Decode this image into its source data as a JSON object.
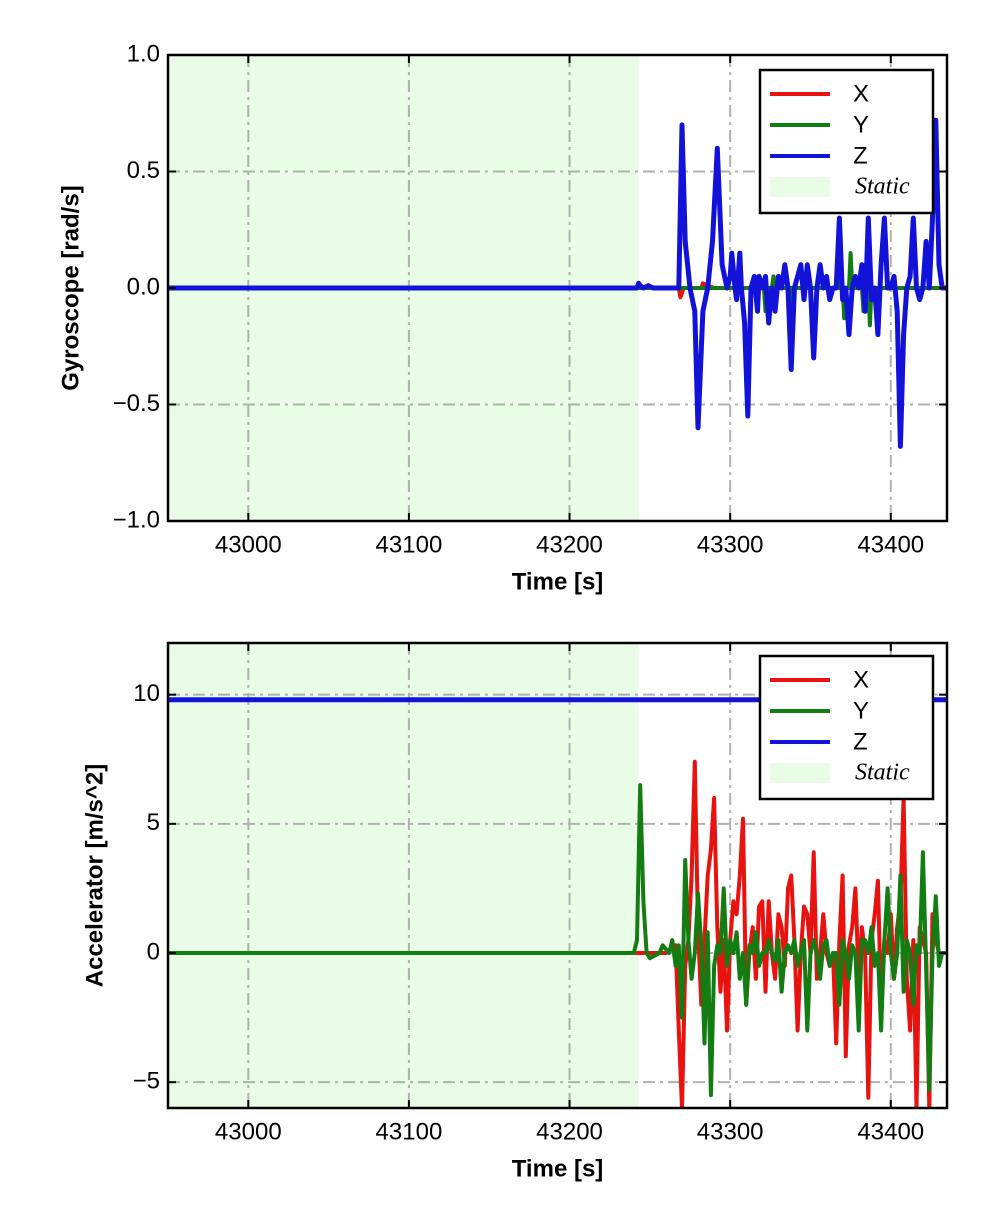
{
  "colors": {
    "X": "#e8120f",
    "Y": "#137d13",
    "Z": "#1212d8",
    "static_fill": "#e8fce6",
    "grid": "#b0b0b0"
  },
  "chart_data": [
    {
      "type": "line",
      "ylabel": "Gyroscope [rad/s]",
      "xlabel": "Time [s]",
      "xlim": [
        42950,
        43435
      ],
      "ylim": [
        -1.0,
        1.0
      ],
      "xticks": [
        43000,
        43100,
        43200,
        43300,
        43400
      ],
      "xtick_labels": [
        "43000",
        "43100",
        "43200",
        "43300",
        "43400"
      ],
      "yticks": [
        1.0,
        0.5,
        0.0,
        -0.5,
        -1.0
      ],
      "ytick_labels": [
        "1.0",
        "0.5",
        "0.0",
        "−0.5",
        "−1.0"
      ],
      "grid": true,
      "legend_position": "top-right",
      "static_region": [
        42950,
        43243
      ],
      "legend": [
        "X",
        "Y",
        "Z",
        "Static"
      ],
      "series": [
        {
          "name": "X",
          "x": [
            42950,
            43243,
            43260,
            43268,
            43269,
            43271,
            43282,
            43283,
            43290,
            43300,
            43325,
            43326,
            43328,
            43340,
            43360,
            43376,
            43377,
            43378,
            43390,
            43435
          ],
          "y": [
            0,
            0,
            0,
            0,
            -0.04,
            0,
            0,
            0.02,
            0,
            0,
            0,
            -0.04,
            0,
            0,
            0,
            0,
            0.02,
            0,
            0,
            0
          ]
        },
        {
          "name": "Y",
          "x": [
            42950,
            43243,
            43260,
            43300,
            43321,
            43322,
            43323,
            43326,
            43327,
            43328,
            43336,
            43337,
            43338,
            43366,
            43367,
            43368,
            43370,
            43371,
            43372,
            43374,
            43375,
            43376,
            43382,
            43383,
            43384,
            43386,
            43387,
            43388,
            43420,
            43435
          ],
          "y": [
            0,
            0,
            0,
            0,
            0,
            -0.1,
            0,
            0,
            0.05,
            0,
            0,
            -0.08,
            0,
            0,
            0.05,
            0,
            0,
            -0.13,
            0,
            0,
            0.15,
            0,
            0,
            -0.1,
            0,
            0,
            -0.16,
            0,
            0,
            0
          ]
        },
        {
          "name": "Z",
          "x": [
            42950,
            43242,
            43243,
            43244,
            43246,
            43249,
            43252,
            43268,
            43270,
            43272,
            43275,
            43278,
            43280,
            43283,
            43286,
            43289,
            43292,
            43295,
            43298,
            43300,
            43301,
            43303,
            43304,
            43306,
            43307,
            43309,
            43311,
            43313,
            43315,
            43317,
            43318,
            43320,
            43322,
            43324,
            43326,
            43328,
            43330,
            43332,
            43334,
            43336,
            43338,
            43340,
            43342,
            43344,
            43346,
            43348,
            43350,
            43352,
            43354,
            43356,
            43358,
            43360,
            43362,
            43364,
            43366,
            43368,
            43370,
            43372,
            43374,
            43376,
            43378,
            43380,
            43382,
            43384,
            43386,
            43388,
            43390,
            43392,
            43394,
            43396,
            43398,
            43400,
            43402,
            43404,
            43406,
            43408,
            43410,
            43412,
            43414,
            43416,
            43418,
            43420,
            43422,
            43424,
            43426,
            43428,
            43430,
            43432,
            43435
          ],
          "y": [
            0,
            0,
            0.02,
            0.01,
            0,
            0.01,
            0,
            0,
            0.7,
            0.2,
            0,
            -0.1,
            -0.6,
            -0.1,
            0,
            0.2,
            0.6,
            0.1,
            0,
            0.05,
            0.15,
            0,
            -0.05,
            0.15,
            0,
            -0.15,
            -0.55,
            0,
            0.05,
            -0.1,
            0.05,
            0,
            0.05,
            -0.15,
            0,
            -0.1,
            0.05,
            0,
            0.1,
            0,
            -0.35,
            0,
            0.05,
            0.1,
            -0.05,
            0.1,
            0,
            -0.3,
            0,
            0.1,
            0,
            0.05,
            -0.05,
            0,
            0,
            0.3,
            -0.05,
            0,
            -0.2,
            0,
            0.05,
            0,
            0.1,
            -0.1,
            0.3,
            -0.05,
            0,
            -0.2,
            0.1,
            0.3,
            0,
            0,
            0.05,
            -0.1,
            -0.68,
            -0.2,
            0,
            0.05,
            0.3,
            0,
            -0.05,
            0,
            0.2,
            0,
            0.3,
            0.72,
            0.1,
            0,
            0
          ]
        }
      ]
    },
    {
      "type": "line",
      "ylabel": "Accelerator [m/s^2]",
      "xlabel": "Time [s]",
      "xlim": [
        42950,
        43435
      ],
      "ylim": [
        -6,
        12
      ],
      "xticks": [
        43000,
        43100,
        43200,
        43300,
        43400
      ],
      "xtick_labels": [
        "43000",
        "43100",
        "43200",
        "43300",
        "43400"
      ],
      "yticks": [
        10,
        5,
        0,
        -5
      ],
      "ytick_labels": [
        "10",
        "5",
        "0",
        "−5"
      ],
      "grid": true,
      "legend_position": "top-right",
      "static_region": [
        42950,
        43243
      ],
      "legend": [
        "X",
        "Y",
        "Z",
        "Static"
      ],
      "series": [
        {
          "name": "X",
          "x": [
            42950,
            43243,
            43250,
            43260,
            43266,
            43268,
            43270,
            43272,
            43274,
            43276,
            43278,
            43280,
            43282,
            43284,
            43286,
            43288,
            43290,
            43292,
            43294,
            43296,
            43298,
            43300,
            43302,
            43304,
            43306,
            43308,
            43310,
            43312,
            43314,
            43316,
            43318,
            43320,
            43322,
            43324,
            43326,
            43328,
            43330,
            43332,
            43334,
            43336,
            43338,
            43340,
            43342,
            43344,
            43346,
            43348,
            43350,
            43352,
            43354,
            43356,
            43358,
            43360,
            43362,
            43364,
            43366,
            43368,
            43370,
            43372,
            43374,
            43376,
            43378,
            43380,
            43382,
            43384,
            43386,
            43388,
            43390,
            43392,
            43394,
            43396,
            43398,
            43400,
            43402,
            43404,
            43406,
            43408,
            43410,
            43412,
            43414,
            43416,
            43418,
            43420,
            43422,
            43424,
            43426,
            43428,
            43430,
            43432,
            43435
          ],
          "y": [
            0,
            0,
            0,
            0,
            0.3,
            -3,
            -6,
            -0.5,
            0.5,
            3,
            7.4,
            1,
            -2,
            0.5,
            3,
            4,
            6,
            1,
            -1.5,
            0.5,
            -3,
            0.5,
            2,
            1.5,
            3,
            5.2,
            -2,
            0,
            1,
            -1,
            1.8,
            2,
            -1.5,
            2,
            0,
            -1,
            1.5,
            1,
            -0.5,
            2.5,
            3,
            0.5,
            -3,
            0,
            1.8,
            1.5,
            0,
            3.9,
            -1,
            0,
            1.5,
            0,
            -0.5,
            0,
            -3.5,
            0.5,
            3,
            -4,
            0.3,
            1,
            2.5,
            -1,
            1,
            0,
            -5.6,
            0.5,
            1.5,
            2.8,
            -2,
            0.5,
            0,
            1.5,
            -1,
            1,
            2,
            6,
            -1,
            -3,
            0.5,
            -6,
            1,
            0.5,
            0,
            -6,
            1.5,
            0.5,
            0,
            0,
            0
          ]
        },
        {
          "name": "Y",
          "x": [
            42950,
            43240,
            43242,
            43244,
            43246,
            43248,
            43250,
            43256,
            43258,
            43262,
            43264,
            43266,
            43268,
            43270,
            43272,
            43274,
            43276,
            43278,
            43280,
            43282,
            43284,
            43286,
            43288,
            43290,
            43292,
            43294,
            43296,
            43298,
            43300,
            43302,
            43304,
            43306,
            43308,
            43310,
            43312,
            43314,
            43316,
            43318,
            43320,
            43322,
            43324,
            43326,
            43328,
            43330,
            43332,
            43334,
            43336,
            43338,
            43340,
            43342,
            43344,
            43346,
            43348,
            43350,
            43352,
            43354,
            43356,
            43358,
            43360,
            43362,
            43364,
            43366,
            43368,
            43370,
            43372,
            43374,
            43376,
            43378,
            43380,
            43382,
            43384,
            43386,
            43388,
            43390,
            43392,
            43394,
            43396,
            43398,
            43400,
            43402,
            43404,
            43406,
            43408,
            43410,
            43412,
            43414,
            43416,
            43418,
            43420,
            43422,
            43424,
            43426,
            43428,
            43430,
            43432,
            43435
          ],
          "y": [
            0,
            0,
            0.5,
            6.5,
            2,
            0,
            -0.2,
            0,
            0.3,
            0,
            0.5,
            -0.5,
            0.3,
            -2.5,
            3.6,
            0.5,
            -1,
            0,
            2.3,
            0.3,
            -3.5,
            0.8,
            -5.5,
            -0.5,
            0.3,
            0,
            2.5,
            -0.5,
            0.5,
            0,
            0.8,
            -1,
            0,
            -2,
            0.3,
            0,
            0.8,
            -0.5,
            0,
            0,
            0.5,
            0,
            -0.3,
            0.5,
            -1.5,
            0,
            0.3,
            0,
            0.5,
            -0.5,
            0,
            0.5,
            -3,
            0,
            0.5,
            0,
            -1,
            0.3,
            0.5,
            -0.5,
            0,
            0,
            -2,
            0.5,
            0,
            -1,
            0.3,
            0,
            -3,
            0.5,
            0.5,
            0,
            1,
            -0.5,
            0,
            -3,
            0.5,
            2.5,
            0,
            -1,
            0,
            3,
            -1.5,
            0.5,
            0,
            -2,
            0.3,
            0,
            3.9,
            -0.5,
            -5.3,
            0,
            2.2,
            -0.5,
            0,
            0
          ]
        },
        {
          "name": "Z",
          "x": [
            42950,
            43435
          ],
          "y": [
            9.8,
            9.8
          ]
        }
      ]
    }
  ]
}
